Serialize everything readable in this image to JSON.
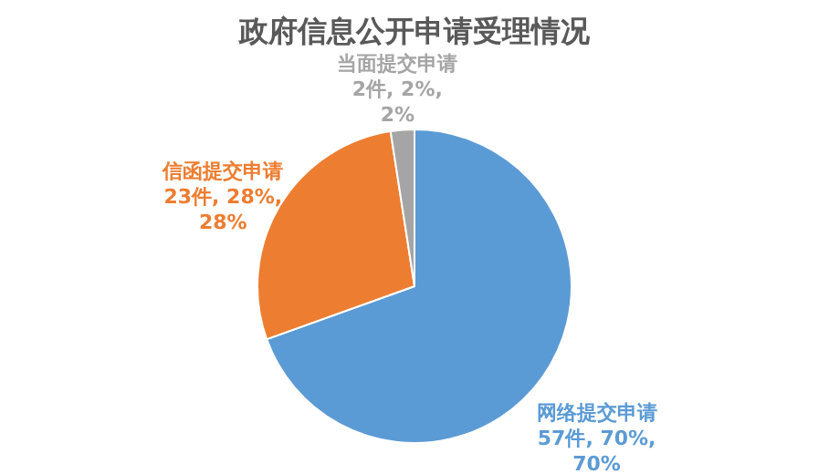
{
  "chart_data": {
    "type": "pie",
    "title": "政府信息公开申请受理情况",
    "categories": [
      "网络提交申请",
      "信函提交申请",
      "当面提交申请"
    ],
    "values": [
      57,
      23,
      2
    ],
    "colors": [
      "#5b9bd5",
      "#ed7d31",
      "#a5a5a5"
    ],
    "value_labels": [
      "57件, 70%, 70%",
      "23件, 28%, 28%",
      "2件, 2%, 2%"
    ],
    "legend": false
  }
}
